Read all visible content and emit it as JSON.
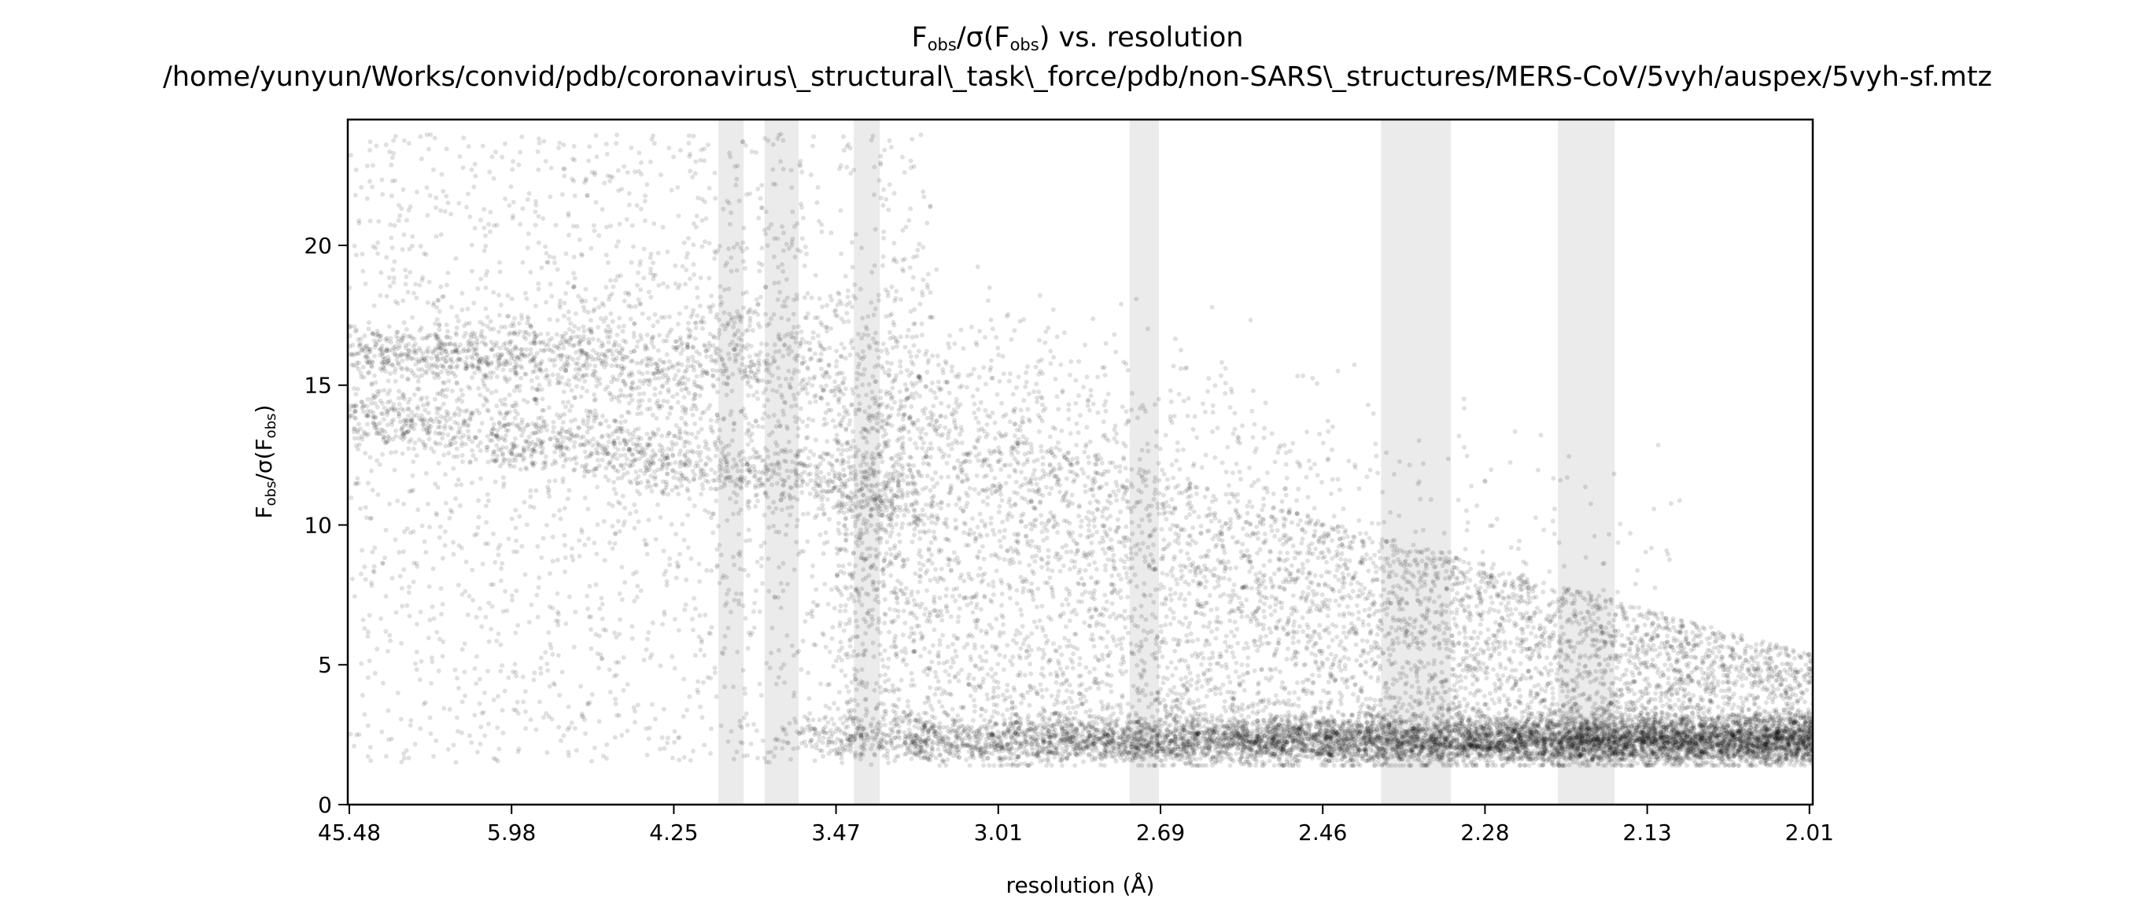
{
  "chart_data": {
    "type": "scatter",
    "title_main": "F",
    "title_sub_obs": "obs",
    "title_slash": "/σ(F",
    "title_sub_obs2": "obs",
    "title_rest": ") vs. resolution",
    "subtitle": "/home/yunyun/Works/convid/pdb/coronavirus\\_structural\\_task\\_force/pdb/non-SARS\\_structures/MERS-CoV/5vyh/auspex/5vyh-sf.mtz",
    "xlabel": "resolution (Å)",
    "ylabel": "Fobs/σ(Fobs)",
    "ylabel_main": "F",
    "ylabel_sub": "obs",
    "ylabel_mid": "/σ(F",
    "ylabel_sub2": "obs",
    "ylabel_end": ")",
    "x_axis": "1/d² (tick labels show resolution d in Å)",
    "x_ticks": [
      "45.48",
      "5.98",
      "4.25",
      "3.47",
      "3.01",
      "2.69",
      "2.46",
      "2.28",
      "2.13",
      "2.01"
    ],
    "ylim": [
      0,
      24.5
    ],
    "y_ticks": [
      0,
      5,
      10,
      15,
      20
    ],
    "grid": false,
    "point_color": "#000000",
    "point_alpha": 0.12,
    "ice_ring_color": "#ebebeb",
    "ice_ring_bands_tick_index": [
      [
        2.275,
        2.43
      ],
      [
        2.56,
        2.77
      ],
      [
        3.11,
        3.27
      ],
      [
        4.81,
        4.99
      ],
      [
        6.36,
        6.79
      ],
      [
        7.45,
        7.8
      ]
    ],
    "distribution_tick_index": {
      "main_band": {
        "x_start": 0.0,
        "y_start": 16.2,
        "x_flat_until": 2.7,
        "y_end_at_tick5": 12.5,
        "fade_out_tick": 7.5
      },
      "secondary_band": {
        "x_start": 0.0,
        "y_start": 14.0,
        "x_end": 3.5,
        "y_end": 11.0
      },
      "low_band": {
        "x_start": 2.5,
        "y_start": 2.3,
        "x_end": 9.0,
        "y_end": 2.2
      }
    }
  }
}
